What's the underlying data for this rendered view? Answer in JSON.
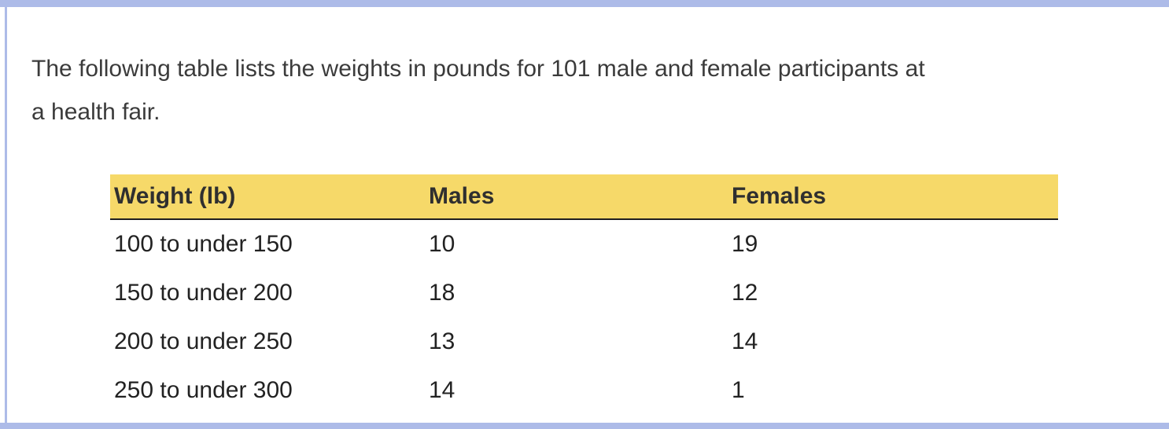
{
  "intro": {
    "lines": [
      "The following table lists the weights in pounds for 101 male and female participants at",
      "a health fair."
    ]
  },
  "table": {
    "headers": [
      "Weight (lb)",
      "Males",
      "Females"
    ],
    "rows": [
      [
        "100 to under 150",
        "10",
        "19"
      ],
      [
        "150 to under 200",
        "18",
        "12"
      ],
      [
        "200 to under 250",
        "13",
        "14"
      ],
      [
        "250 to under 300",
        "14",
        "1"
      ]
    ]
  },
  "colors": {
    "table_header_bg": "#f6d969",
    "page_border": "#adbbe8",
    "header_underline": "#1f1f1f"
  }
}
